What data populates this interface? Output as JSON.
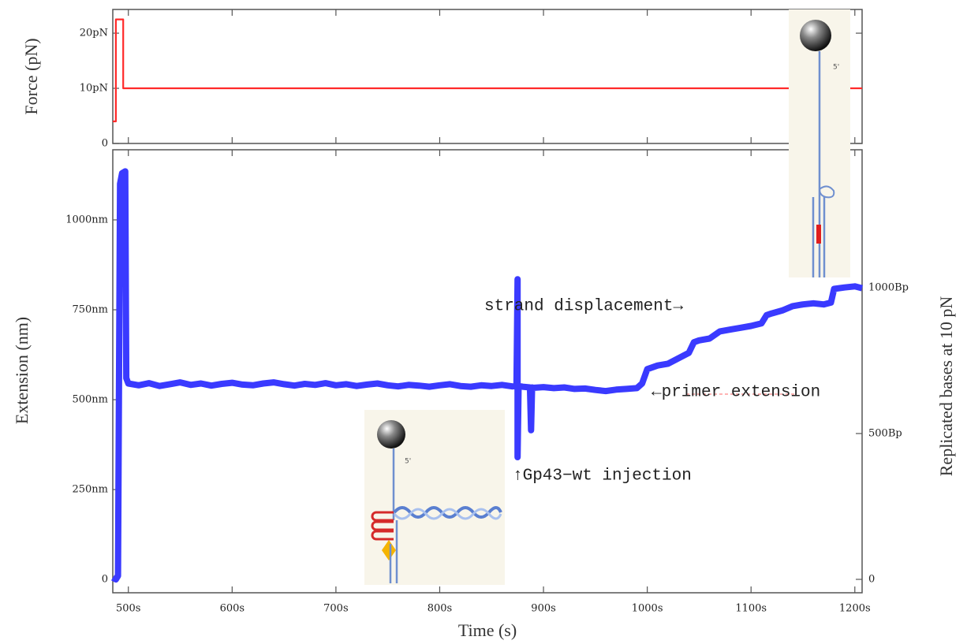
{
  "chart_data": [
    {
      "type": "line",
      "ylabel": "Force (pN)",
      "xlim": [
        485,
        1207
      ],
      "ylim": [
        0,
        24.3
      ],
      "yticks": [
        0,
        {
          "value": 10,
          "label": "10pN"
        },
        {
          "value": 20,
          "label": "20pN"
        }
      ],
      "series": [
        {
          "name": "Force",
          "color": "#ff2a2a",
          "x": [
            485,
            488,
            488,
            495,
            495,
            1207
          ],
          "values": [
            4,
            4,
            22.5,
            22.5,
            10,
            10
          ]
        }
      ]
    },
    {
      "type": "line",
      "xlabel": "Time (s)",
      "ylabel": "Extension (nm)",
      "y2label": "Replicated bases at 10 pN",
      "xlim": [
        485,
        1207
      ],
      "ylim": [
        -37,
        1195
      ],
      "y2lim": [
        -46,
        1473
      ],
      "xticks": [
        {
          "value": 500,
          "label": "500s"
        },
        {
          "value": 600,
          "label": "600s"
        },
        {
          "value": 700,
          "label": "700s"
        },
        {
          "value": 800,
          "label": "800s"
        },
        {
          "value": 900,
          "label": "900s"
        },
        {
          "value": 1000,
          "label": "1000s"
        },
        {
          "value": 1100,
          "label": "1100s"
        },
        {
          "value": 1200,
          "label": "1200s"
        }
      ],
      "yticks": [
        0,
        {
          "value": 250,
          "label": "250nm"
        },
        {
          "value": 500,
          "label": "500nm"
        },
        {
          "value": 750,
          "label": "750nm"
        },
        {
          "value": 1000,
          "label": "1000nm"
        }
      ],
      "y2ticks": [
        0,
        {
          "value": 500,
          "label": "500Bp"
        },
        {
          "value": 1000,
          "label": "1000Bp"
        }
      ],
      "annotations": [
        "strand displacement→",
        "←primer extension",
        "↑Gp43−wt injection",
        "5'",
        "5'"
      ],
      "series": [
        {
          "name": "Extension",
          "color": "#3a3aff",
          "x": [
            485,
            488,
            490,
            492,
            494,
            497,
            498,
            500,
            510,
            520,
            530,
            540,
            550,
            560,
            570,
            580,
            590,
            600,
            610,
            620,
            630,
            640,
            650,
            660,
            670,
            680,
            690,
            700,
            710,
            720,
            730,
            740,
            750,
            760,
            770,
            780,
            790,
            800,
            810,
            820,
            830,
            840,
            850,
            860,
            870,
            874,
            875,
            875,
            876,
            880,
            887,
            888,
            889,
            890,
            900,
            910,
            920,
            930,
            940,
            950,
            960,
            970,
            980,
            990,
            995,
            1000,
            1010,
            1020,
            1030,
            1040,
            1045,
            1050,
            1060,
            1070,
            1080,
            1090,
            1100,
            1110,
            1115,
            1120,
            1130,
            1140,
            1150,
            1160,
            1170,
            1177,
            1180,
            1190,
            1200,
            1207
          ],
          "values": [
            5,
            0,
            10,
            1100,
            1130,
            1135,
            560,
            545,
            540,
            546,
            538,
            543,
            548,
            541,
            545,
            539,
            544,
            547,
            542,
            540,
            545,
            548,
            543,
            539,
            544,
            541,
            546,
            540,
            543,
            538,
            542,
            545,
            540,
            537,
            541,
            539,
            536,
            540,
            543,
            538,
            536,
            540,
            538,
            541,
            537,
            538,
            835,
            340,
            538,
            536,
            534,
            415,
            534,
            533,
            535,
            532,
            534,
            530,
            531,
            527,
            524,
            528,
            530,
            532,
            545,
            585,
            595,
            600,
            615,
            630,
            660,
            665,
            670,
            690,
            695,
            700,
            705,
            712,
            735,
            740,
            748,
            760,
            765,
            768,
            765,
            770,
            808,
            812,
            815,
            810
          ]
        }
      ]
    }
  ]
}
